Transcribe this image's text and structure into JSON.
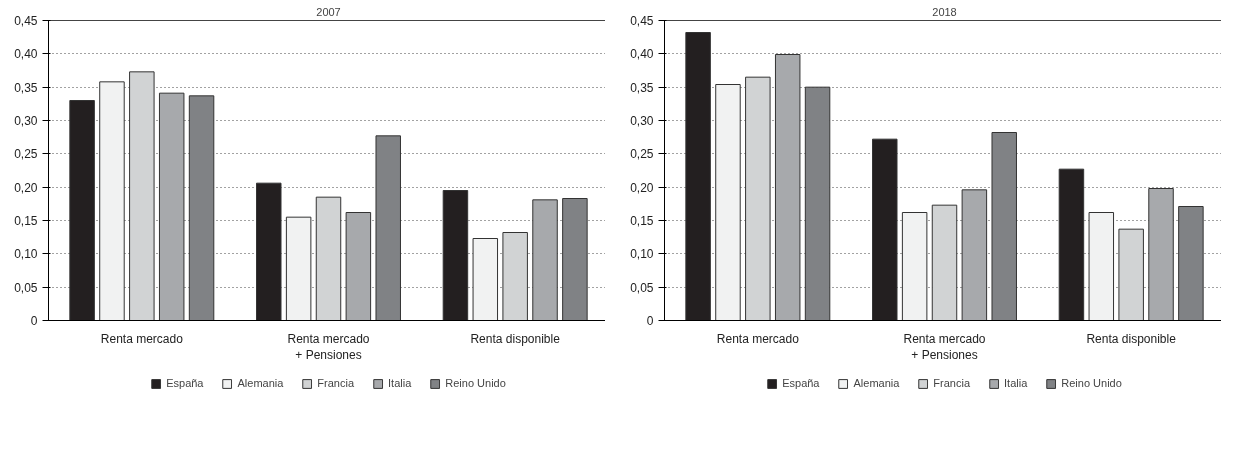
{
  "chart_data": [
    {
      "type": "bar",
      "title": "2007",
      "categories": [
        "Renta mercado",
        "Renta mercado\n+ Pensiones",
        "Renta disponible"
      ],
      "ylim": [
        0,
        0.45
      ],
      "yticks": [
        {
          "value": 0,
          "label": "0"
        },
        {
          "value": 0.05,
          "label": "0,05"
        },
        {
          "value": 0.1,
          "label": "0,10"
        },
        {
          "value": 0.15,
          "label": "0,15"
        },
        {
          "value": 0.2,
          "label": "0,20"
        },
        {
          "value": 0.25,
          "label": "0,25"
        },
        {
          "value": 0.3,
          "label": "0,30"
        },
        {
          "value": 0.35,
          "label": "0,35"
        },
        {
          "value": 0.4,
          "label": "0,40"
        },
        {
          "value": 0.45,
          "label": "0,45"
        }
      ],
      "grid": "y",
      "legend": "bottom",
      "series": [
        {
          "name": "España",
          "color": "#231f20",
          "values": [
            0.33,
            0.206,
            0.195
          ]
        },
        {
          "name": "Alemania",
          "color": "#f1f2f2",
          "values": [
            0.358,
            0.155,
            0.123
          ]
        },
        {
          "name": "Francia",
          "color": "#d1d3d4",
          "values": [
            0.373,
            0.185,
            0.132
          ]
        },
        {
          "name": "Italia",
          "color": "#a7a9ac",
          "values": [
            0.341,
            0.162,
            0.181
          ]
        },
        {
          "name": "Reino Unido",
          "color": "#808285",
          "values": [
            0.337,
            0.277,
            0.183
          ]
        }
      ]
    },
    {
      "type": "bar",
      "title": "2018",
      "categories": [
        "Renta mercado",
        "Renta mercado\n+ Pensiones",
        "Renta disponible"
      ],
      "ylim": [
        0,
        0.45
      ],
      "yticks": [
        {
          "value": 0,
          "label": "0"
        },
        {
          "value": 0.05,
          "label": "0,05"
        },
        {
          "value": 0.1,
          "label": "0,10"
        },
        {
          "value": 0.15,
          "label": "0,15"
        },
        {
          "value": 0.2,
          "label": "0,20"
        },
        {
          "value": 0.25,
          "label": "0,25"
        },
        {
          "value": 0.3,
          "label": "0,30"
        },
        {
          "value": 0.35,
          "label": "0,35"
        },
        {
          "value": 0.4,
          "label": "0,40"
        },
        {
          "value": 0.45,
          "label": "0,45"
        }
      ],
      "grid": "y",
      "legend": "bottom",
      "series": [
        {
          "name": "España",
          "color": "#231f20",
          "values": [
            0.432,
            0.272,
            0.227
          ]
        },
        {
          "name": "Alemania",
          "color": "#f1f2f2",
          "values": [
            0.354,
            0.162,
            0.162
          ]
        },
        {
          "name": "Francia",
          "color": "#d1d3d4",
          "values": [
            0.365,
            0.173,
            0.137
          ]
        },
        {
          "name": "Italia",
          "color": "#a7a9ac",
          "values": [
            0.399,
            0.196,
            0.198
          ]
        },
        {
          "name": "Reino Unido",
          "color": "#808285",
          "values": [
            0.35,
            0.282,
            0.171
          ]
        }
      ]
    }
  ]
}
